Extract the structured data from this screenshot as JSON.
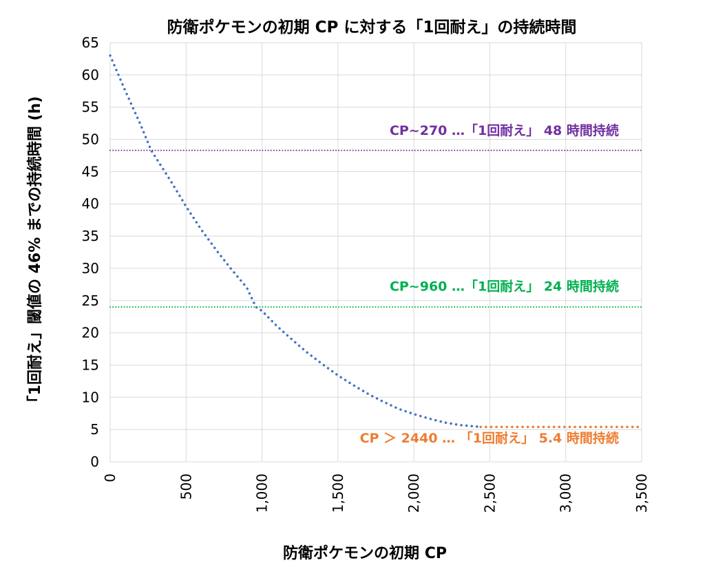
{
  "chart_data": {
    "type": "line",
    "title": "防衛ポケモンの初期 CP に対する「1回耐え」の持続時間",
    "xlabel": "防衛ポケモンの初期 CP",
    "ylabel": "「1回耐え」閾値の 46% までの持続時間 (h)",
    "xlim": [
      0,
      3500
    ],
    "ylim": [
      0,
      65
    ],
    "xticks": [
      0,
      500,
      1000,
      1500,
      2000,
      2500,
      3000,
      3500
    ],
    "xtick_labels": [
      "0",
      "500",
      "1,000",
      "1,500",
      "2,000",
      "2,500",
      "3,000",
      "3,500"
    ],
    "yticks": [
      0,
      5,
      10,
      15,
      20,
      25,
      30,
      35,
      40,
      45,
      50,
      55,
      60,
      65
    ],
    "ytick_labels": [
      "0",
      "5",
      "10",
      "15",
      "20",
      "25",
      "30",
      "35",
      "40",
      "45",
      "50",
      "55",
      "60",
      "65"
    ],
    "grid": true,
    "legend": "none",
    "series": [
      {
        "color": "#4472C4",
        "style": "dotted",
        "x": [
          0,
          100,
          200,
          270,
          400,
          500,
          600,
          700,
          800,
          900,
          960,
          1000,
          1100,
          1200,
          1300,
          1400,
          1500,
          1600,
          1700,
          1800,
          1900,
          2000,
          2100,
          2200,
          2300,
          2440
        ],
        "y": [
          63,
          57.5,
          52.3,
          48.3,
          43.5,
          39.6,
          36.0,
          32.8,
          29.8,
          27.0,
          24.0,
          23.4,
          21.0,
          18.9,
          16.9,
          15.1,
          13.4,
          11.9,
          10.5,
          9.3,
          8.2,
          7.4,
          6.7,
          6.1,
          5.7,
          5.4
        ]
      },
      {
        "color": "#ED7D31",
        "style": "dotted",
        "x": [
          2440,
          3500
        ],
        "y": [
          5.4,
          5.4
        ]
      },
      {
        "color": "#7030A0",
        "style": "dotted",
        "x": [
          0,
          3500
        ],
        "y": [
          48.3,
          48.3
        ]
      },
      {
        "color": "#00B050",
        "style": "dotted",
        "x": [
          0,
          3500
        ],
        "y": [
          24,
          24
        ]
      }
    ],
    "annotations": [
      {
        "text": "CP~270 …「1回耐え」 48 時間持続",
        "color": "#7030A0",
        "x": 3350,
        "y": 50.7
      },
      {
        "text": "CP~960 …「1回耐え」 24 時間持続",
        "color": "#00B050",
        "x": 3350,
        "y": 26.5
      },
      {
        "text": "CP ＞ 2440 … 「1回耐え」 5.4 時間持続",
        "color": "#ED7D31",
        "x": 3350,
        "y": 3.0
      }
    ]
  }
}
